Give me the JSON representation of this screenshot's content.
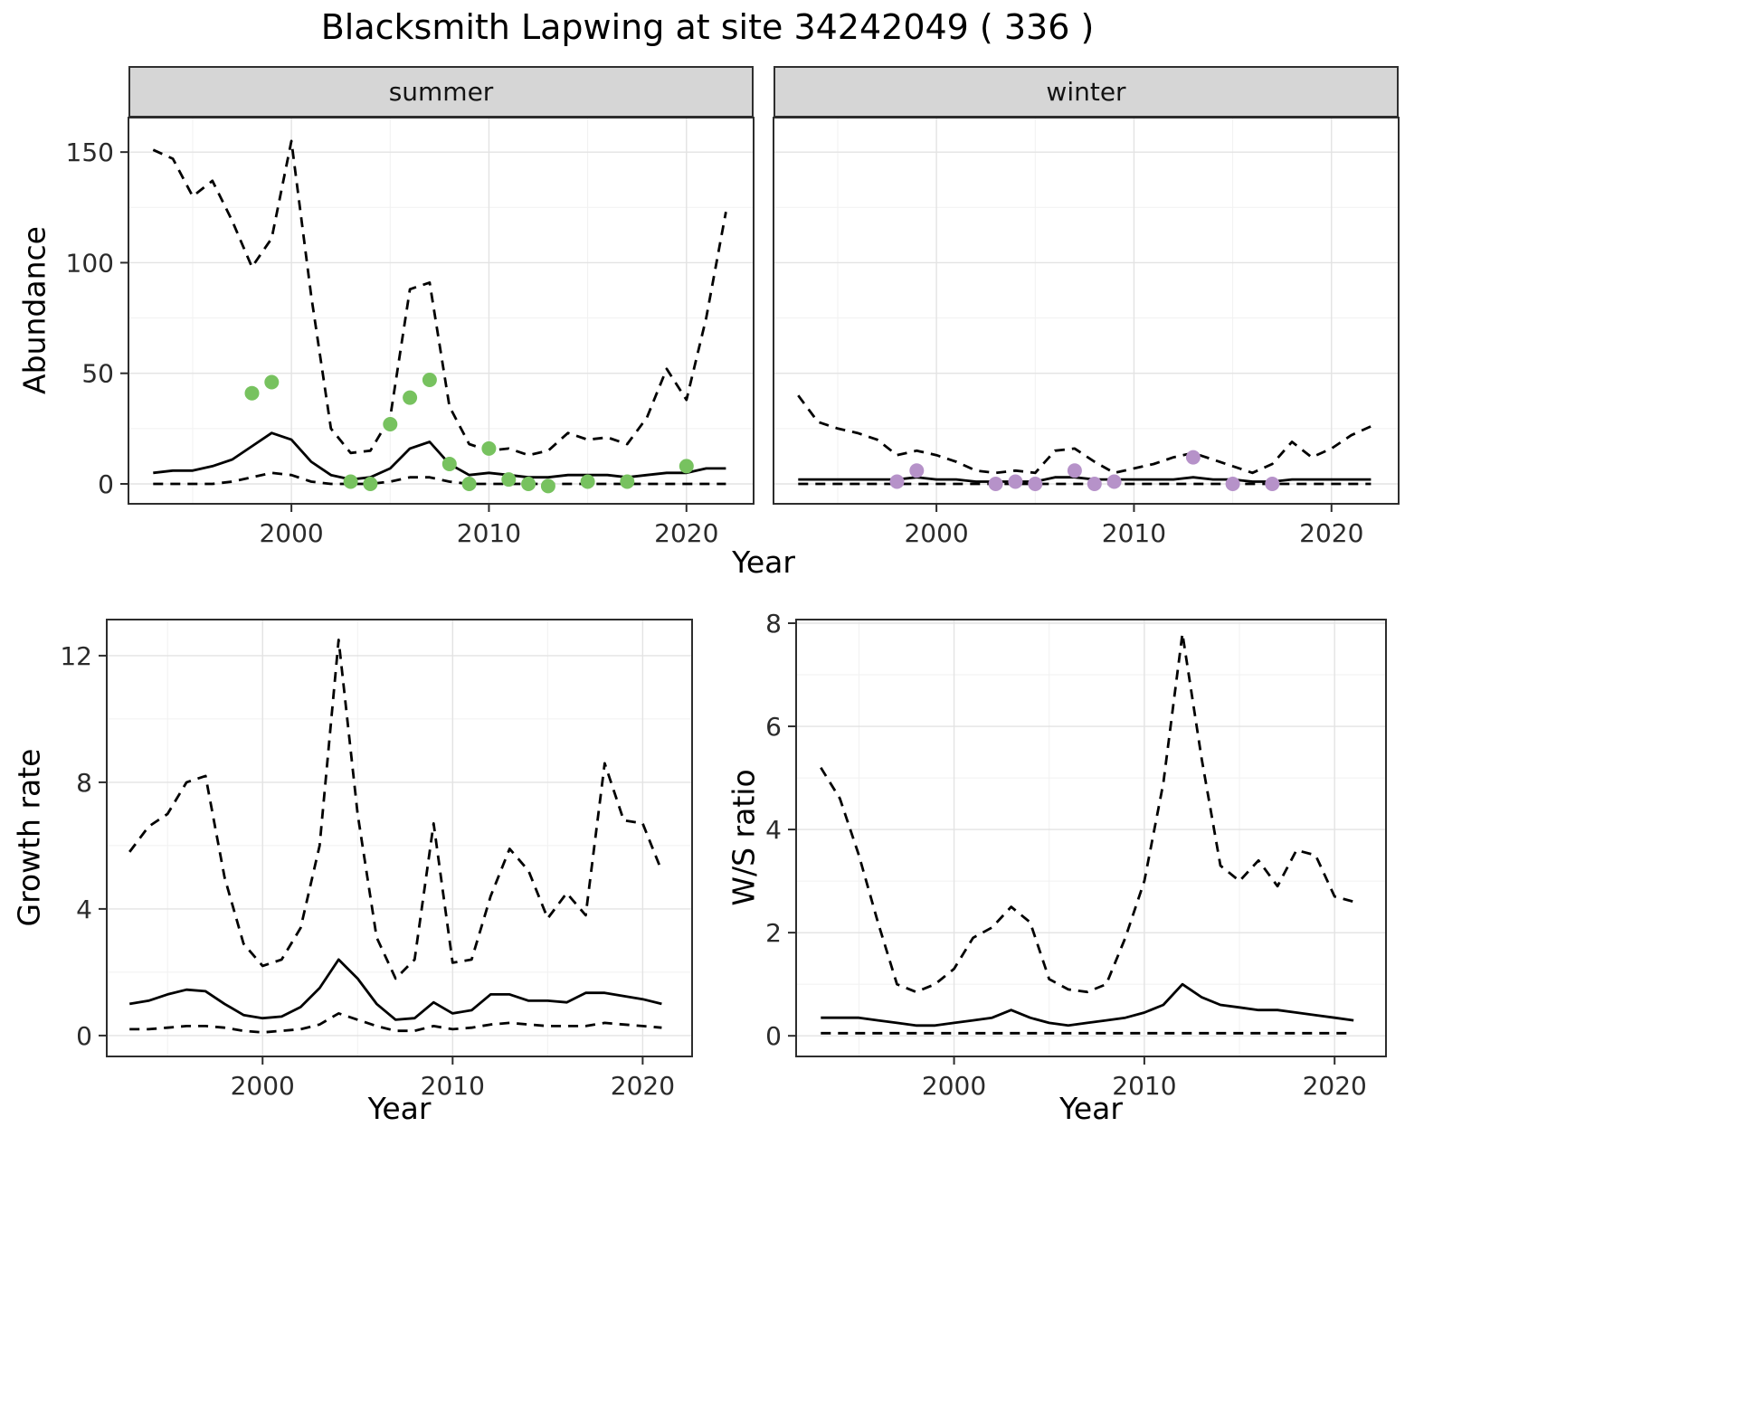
{
  "title": "Blacksmith Lapwing at site 34242049 ( 336 )",
  "colors": {
    "solid_line": "#000000",
    "summer_points": "#77c25f",
    "winter_points": "#b692c9",
    "grid_major": "#e3e3e3",
    "grid_minor": "#f1f1f1",
    "panel_border": "#2d2d2d",
    "strip_bg": "#d6d6d6",
    "tick_text": "#2b2b2b"
  },
  "labels": {
    "y_abundance": "Abundance",
    "y_growth": "Growth rate",
    "y_ws": "W/S ratio",
    "x_year_top": "Year",
    "x_year_growth": "Year",
    "x_year_ws": "Year",
    "facet_summer": "summer",
    "facet_winter": "winter"
  },
  "chart_data": [
    {
      "key": "abundance_summer",
      "type": "line",
      "title": "summer",
      "xlabel": "Year",
      "ylabel": "Abundance",
      "xlim": [
        1991.75,
        2023.4
      ],
      "ylim": [
        -9,
        165.6
      ],
      "xticks": [
        2000,
        2010,
        2020
      ],
      "yticks": [
        0,
        50,
        100,
        150
      ],
      "grid": true,
      "series": [
        {
          "name": "upper_ci",
          "style": "dashed",
          "x": [
            1993,
            1994,
            1995,
            1996,
            1997,
            1998,
            1999,
            2000,
            2001,
            2002,
            2003,
            2004,
            2005,
            2006,
            2007,
            2008,
            2009,
            2010,
            2011,
            2012,
            2013,
            2014,
            2015,
            2016,
            2017,
            2018,
            2019,
            2020,
            2021,
            2022
          ],
          "y": [
            151,
            147,
            130,
            137,
            119,
            98,
            111,
            155,
            85,
            25,
            14,
            15,
            30,
            88,
            91,
            35,
            18,
            15,
            16,
            13,
            15,
            23,
            20,
            21,
            18,
            30,
            52,
            38,
            75,
            123
          ]
        },
        {
          "name": "estimate",
          "style": "solid",
          "x": [
            1993,
            1994,
            1995,
            1996,
            1997,
            1998,
            1999,
            2000,
            2001,
            2002,
            2003,
            2004,
            2005,
            2006,
            2007,
            2008,
            2009,
            2010,
            2011,
            2012,
            2013,
            2014,
            2015,
            2016,
            2017,
            2018,
            2019,
            2020,
            2021,
            2022
          ],
          "y": [
            5,
            6,
            6,
            8,
            11,
            17,
            23,
            20,
            10,
            4,
            2,
            3,
            7,
            16,
            19,
            9,
            4,
            5,
            4,
            3,
            3,
            4,
            4,
            4,
            3,
            4,
            5,
            5,
            7,
            7
          ]
        },
        {
          "name": "lower_ci",
          "style": "dashed",
          "x": [
            1993,
            1994,
            1995,
            1996,
            1997,
            1998,
            1999,
            2000,
            2001,
            2002,
            2003,
            2004,
            2005,
            2006,
            2007,
            2008,
            2009,
            2010,
            2011,
            2012,
            2013,
            2014,
            2015,
            2016,
            2017,
            2018,
            2019,
            2020,
            2021,
            2022
          ],
          "y": [
            0,
            0,
            0,
            0,
            1,
            3,
            5,
            4,
            1,
            0,
            0,
            0,
            1,
            3,
            3,
            1,
            0,
            0,
            0,
            0,
            0,
            0,
            0,
            0,
            0,
            0,
            0,
            0,
            0,
            0
          ]
        },
        {
          "name": "observed",
          "style": "points",
          "color": "summer_points",
          "x": [
            1998,
            1999,
            2003,
            2004,
            2005,
            2006,
            2007,
            2008,
            2009,
            2010,
            2011,
            2012,
            2013,
            2015,
            2017,
            2020
          ],
          "y": [
            41,
            46,
            1,
            0,
            27,
            39,
            47,
            9,
            0,
            16,
            2,
            0,
            -1,
            1,
            1,
            8
          ]
        }
      ]
    },
    {
      "key": "abundance_winter",
      "type": "line",
      "title": "winter",
      "xlabel": "Year",
      "ylabel": "Abundance",
      "xlim": [
        1991.75,
        2023.4
      ],
      "ylim": [
        -9,
        165.6
      ],
      "xticks": [
        2000,
        2010,
        2020
      ],
      "yticks": [
        0,
        50,
        100,
        150
      ],
      "grid": true,
      "series": [
        {
          "name": "upper_ci",
          "style": "dashed",
          "x": [
            1993,
            1994,
            1995,
            1996,
            1997,
            1998,
            1999,
            2000,
            2001,
            2002,
            2003,
            2004,
            2005,
            2006,
            2007,
            2008,
            2009,
            2010,
            2011,
            2012,
            2013,
            2014,
            2015,
            2016,
            2017,
            2018,
            2019,
            2020,
            2021,
            2022
          ],
          "y": [
            40,
            28,
            25,
            23,
            20,
            13,
            15,
            13,
            10,
            6,
            5,
            6,
            5,
            15,
            16,
            10,
            5,
            7,
            9,
            12,
            14,
            11,
            8,
            5,
            9,
            19,
            12,
            16,
            22,
            26
          ]
        },
        {
          "name": "estimate",
          "style": "solid",
          "x": [
            1993,
            1994,
            1995,
            1996,
            1997,
            1998,
            1999,
            2000,
            2001,
            2002,
            2003,
            2004,
            2005,
            2006,
            2007,
            2008,
            2009,
            2010,
            2011,
            2012,
            2013,
            2014,
            2015,
            2016,
            2017,
            2018,
            2019,
            2020,
            2021,
            2022
          ],
          "y": [
            2,
            2,
            2,
            2,
            2,
            2,
            3,
            2,
            2,
            1,
            1,
            1,
            1,
            3,
            3,
            2,
            2,
            2,
            2,
            2,
            3,
            2,
            2,
            1,
            1,
            2,
            2,
            2,
            2,
            2
          ]
        },
        {
          "name": "lower_ci",
          "style": "dashed",
          "x": [
            1993,
            1994,
            1995,
            1996,
            1997,
            1998,
            1999,
            2000,
            2001,
            2002,
            2003,
            2004,
            2005,
            2006,
            2007,
            2008,
            2009,
            2010,
            2011,
            2012,
            2013,
            2014,
            2015,
            2016,
            2017,
            2018,
            2019,
            2020,
            2021,
            2022
          ],
          "y": [
            0,
            0,
            0,
            0,
            0,
            0,
            0,
            0,
            0,
            0,
            0,
            0,
            0,
            0,
            0,
            0,
            0,
            0,
            0,
            0,
            0,
            0,
            0,
            0,
            0,
            0,
            0,
            0,
            0,
            0
          ]
        },
        {
          "name": "observed",
          "style": "points",
          "color": "winter_points",
          "x": [
            1998,
            1999,
            2003,
            2004,
            2005,
            2007,
            2008,
            2009,
            2013,
            2015,
            2017
          ],
          "y": [
            1,
            6,
            0,
            1,
            0,
            6,
            0,
            1,
            12,
            0,
            0
          ]
        }
      ]
    },
    {
      "key": "growth_rate",
      "type": "line",
      "title": "Growth rate",
      "xlabel": "Year",
      "ylabel": "Growth rate",
      "xlim": [
        1991.8,
        2022.6
      ],
      "ylim": [
        -0.66,
        13.14
      ],
      "xticks": [
        2000,
        2010,
        2020
      ],
      "yticks": [
        0,
        4,
        8,
        12
      ],
      "grid": true,
      "series": [
        {
          "name": "upper_ci",
          "style": "dashed",
          "x": [
            1993,
            1994,
            1995,
            1996,
            1997,
            1998,
            1999,
            2000,
            2001,
            2002,
            2003,
            2004,
            2005,
            2006,
            2007,
            2008,
            2009,
            2010,
            2011,
            2012,
            2013,
            2014,
            2015,
            2016,
            2017,
            2018,
            2019,
            2020,
            2021
          ],
          "y": [
            5.8,
            6.6,
            7.0,
            8.0,
            8.2,
            5.0,
            2.9,
            2.2,
            2.4,
            3.4,
            6.0,
            12.5,
            7.0,
            3.1,
            1.8,
            2.4,
            6.7,
            2.3,
            2.4,
            4.4,
            5.9,
            5.2,
            3.7,
            4.5,
            3.8,
            8.6,
            6.8,
            6.7,
            5.2
          ]
        },
        {
          "name": "estimate",
          "style": "solid",
          "x": [
            1993,
            1994,
            1995,
            1996,
            1997,
            1998,
            1999,
            2000,
            2001,
            2002,
            2003,
            2004,
            2005,
            2006,
            2007,
            2008,
            2009,
            2010,
            2011,
            2012,
            2013,
            2014,
            2015,
            2016,
            2017,
            2018,
            2019,
            2020,
            2021
          ],
          "y": [
            1.0,
            1.1,
            1.3,
            1.45,
            1.4,
            1.0,
            0.65,
            0.55,
            0.6,
            0.9,
            1.5,
            2.4,
            1.8,
            1.0,
            0.5,
            0.55,
            1.05,
            0.7,
            0.8,
            1.3,
            1.3,
            1.1,
            1.1,
            1.05,
            1.35,
            1.35,
            1.25,
            1.15,
            1.0
          ]
        },
        {
          "name": "lower_ci",
          "style": "dashed",
          "x": [
            1993,
            1994,
            1995,
            1996,
            1997,
            1998,
            1999,
            2000,
            2001,
            2002,
            2003,
            2004,
            2005,
            2006,
            2007,
            2008,
            2009,
            2010,
            2011,
            2012,
            2013,
            2014,
            2015,
            2016,
            2017,
            2018,
            2019,
            2020,
            2021
          ],
          "y": [
            0.2,
            0.2,
            0.25,
            0.3,
            0.3,
            0.25,
            0.15,
            0.1,
            0.15,
            0.2,
            0.35,
            0.7,
            0.5,
            0.3,
            0.15,
            0.15,
            0.3,
            0.2,
            0.25,
            0.35,
            0.4,
            0.35,
            0.3,
            0.3,
            0.3,
            0.4,
            0.35,
            0.3,
            0.25
          ]
        }
      ]
    },
    {
      "key": "ws_ratio",
      "type": "line",
      "title": "W/S ratio",
      "xlabel": "Year",
      "ylabel": "W/S ratio",
      "xlim": [
        1991.7,
        2022.7
      ],
      "ylim": [
        -0.4,
        8.07
      ],
      "xticks": [
        2000,
        2010,
        2020
      ],
      "yticks": [
        0,
        2,
        4,
        6,
        8
      ],
      "grid": true,
      "series": [
        {
          "name": "upper_ci",
          "style": "dashed",
          "x": [
            1993,
            1994,
            1995,
            1996,
            1997,
            1998,
            1999,
            2000,
            2001,
            2002,
            2003,
            2004,
            2005,
            2006,
            2007,
            2008,
            2009,
            2010,
            2011,
            2012,
            2013,
            2014,
            2015,
            2016,
            2017,
            2018,
            2019,
            2020,
            2021
          ],
          "y": [
            5.2,
            4.6,
            3.5,
            2.2,
            1.0,
            0.85,
            1.0,
            1.3,
            1.9,
            2.1,
            2.5,
            2.2,
            1.1,
            0.9,
            0.85,
            1.0,
            1.9,
            3.0,
            4.9,
            7.8,
            5.4,
            3.3,
            3.0,
            3.4,
            2.9,
            3.6,
            3.5,
            2.7,
            2.6
          ]
        },
        {
          "name": "estimate",
          "style": "solid",
          "x": [
            1993,
            1994,
            1995,
            1996,
            1997,
            1998,
            1999,
            2000,
            2001,
            2002,
            2003,
            2004,
            2005,
            2006,
            2007,
            2008,
            2009,
            2010,
            2011,
            2012,
            2013,
            2014,
            2015,
            2016,
            2017,
            2018,
            2019,
            2020,
            2021
          ],
          "y": [
            0.35,
            0.35,
            0.35,
            0.3,
            0.25,
            0.2,
            0.2,
            0.25,
            0.3,
            0.35,
            0.5,
            0.35,
            0.25,
            0.2,
            0.25,
            0.3,
            0.35,
            0.45,
            0.6,
            1.0,
            0.75,
            0.6,
            0.55,
            0.5,
            0.5,
            0.45,
            0.4,
            0.35,
            0.3
          ]
        },
        {
          "name": "lower_ci",
          "style": "dashed",
          "x": [
            1993,
            1994,
            1995,
            1996,
            1997,
            1998,
            1999,
            2000,
            2001,
            2002,
            2003,
            2004,
            2005,
            2006,
            2007,
            2008,
            2009,
            2010,
            2011,
            2012,
            2013,
            2014,
            2015,
            2016,
            2017,
            2018,
            2019,
            2020,
            2021
          ],
          "y": [
            0.05,
            0.05,
            0.05,
            0.05,
            0.05,
            0.05,
            0.05,
            0.05,
            0.05,
            0.05,
            0.05,
            0.05,
            0.05,
            0.05,
            0.05,
            0.05,
            0.05,
            0.05,
            0.05,
            0.05,
            0.05,
            0.05,
            0.05,
            0.05,
            0.05,
            0.05,
            0.05,
            0.05,
            0.05
          ]
        }
      ]
    }
  ]
}
